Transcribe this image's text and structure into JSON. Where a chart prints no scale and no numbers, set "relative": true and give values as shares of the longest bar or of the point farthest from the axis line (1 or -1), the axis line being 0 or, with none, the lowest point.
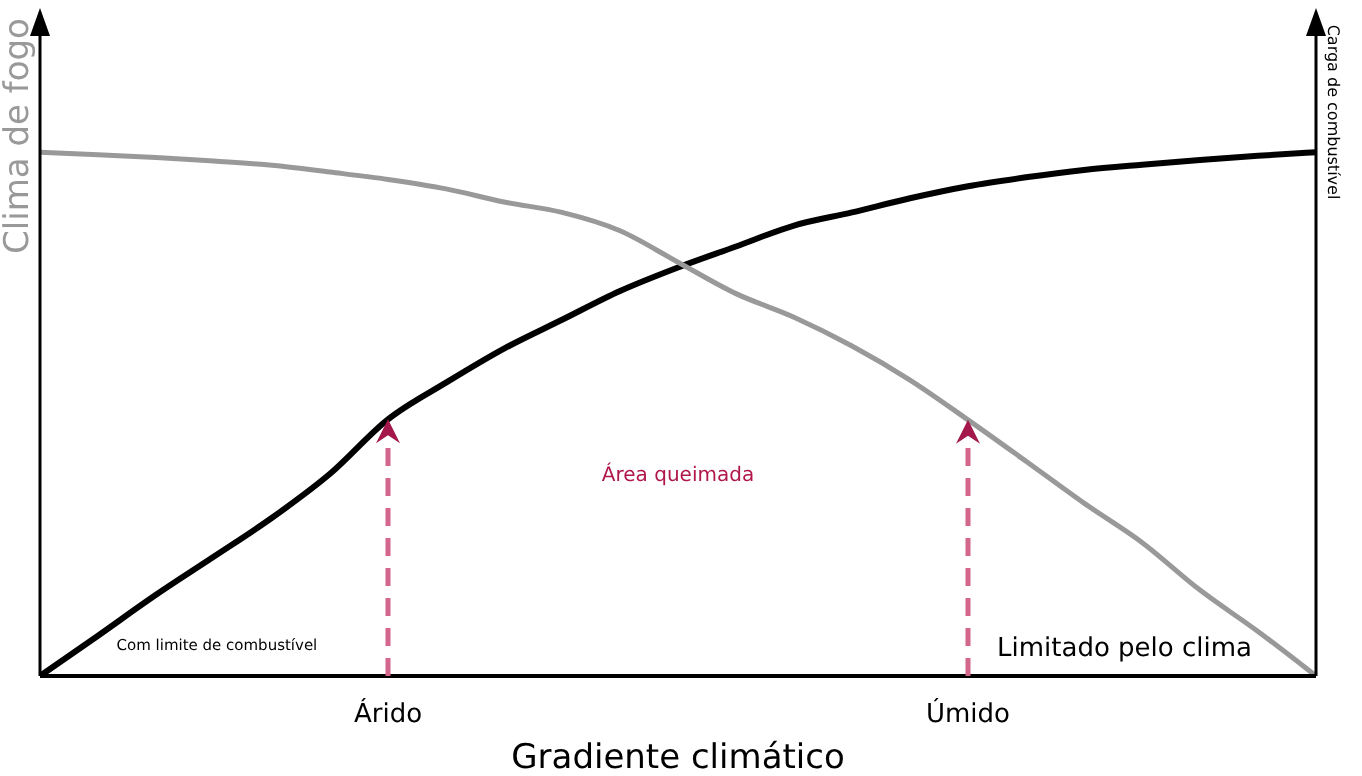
{
  "chart_data": {
    "type": "line",
    "relative": true,
    "xlabel": "Gradiente climático",
    "ylabel": "Clima de fogo",
    "y2label": "Carga de combustível",
    "grid": false,
    "legend": false,
    "marker": "none",
    "line_style": "solid",
    "categories": [
      null,
      null,
      null,
      null,
      null,
      null,
      "Árido",
      null,
      null,
      null,
      null,
      null,
      null,
      null,
      null,
      null,
      "Úmido",
      null,
      null,
      null,
      null,
      null,
      null
    ],
    "series": [
      {
        "color": "#000000",
        "values": [
          0,
          0.077,
          0.155,
          0.228,
          0.302,
          0.386,
          0.49,
          0.56,
          0.625,
          0.68,
          0.735,
          0.78,
          0.82,
          0.86,
          0.885,
          0.912,
          0.935,
          0.952,
          0.966,
          0.976,
          0.985,
          0.993,
          1
        ]
      },
      {
        "color": "#999999",
        "values": [
          1,
          0.995,
          0.99,
          0.983,
          0.975,
          0.962,
          0.948,
          0.93,
          0.905,
          0.885,
          0.85,
          0.79,
          0.73,
          0.685,
          0.63,
          0.565,
          0.489,
          0.41,
          0.33,
          0.255,
          0.164,
          0.085,
          0
        ]
      }
    ],
    "annotations": [
      "Área queimada",
      "Com limite de combustível",
      "Limitado pelo clima"
    ]
  }
}
